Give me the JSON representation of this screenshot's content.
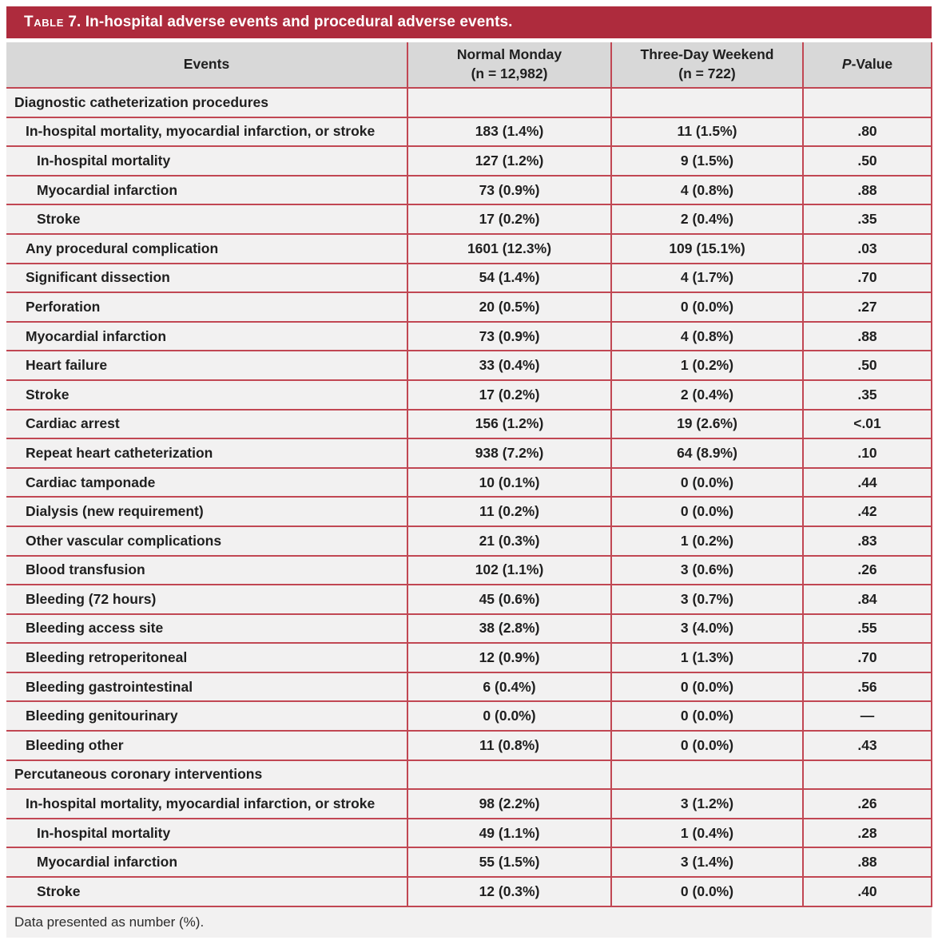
{
  "title": {
    "smallcaps": "Table",
    "rest": " 7. In-hospital adverse events and procedural adverse events."
  },
  "colors": {
    "title_bar_red": "#AE2B3D",
    "grid_line_red": "#C14753",
    "header_bg": "#D8D8D8",
    "row_bg": "#F2F1F1",
    "text": "#1F1F1F"
  },
  "columns": {
    "events": "Events",
    "monday_line1": "Normal Monday",
    "monday_line2": "(n = 12,982)",
    "weekend_line1": "Three-Day Weekend",
    "weekend_line2": "(n = 722)",
    "pvalue_italic": "P",
    "pvalue_rest": "-Value"
  },
  "table": {
    "rows": [
      {
        "label": "Diagnostic catheterization procedures",
        "indent": 0,
        "section": true,
        "monday": "",
        "weekend": "",
        "p": ""
      },
      {
        "label": "In-hospital mortality, myocardial infarction, or stroke",
        "indent": 1,
        "section": false,
        "monday": "183 (1.4%)",
        "weekend": "11 (1.5%)",
        "p": ".80"
      },
      {
        "label": "In-hospital mortality",
        "indent": 2,
        "section": false,
        "monday": "127 (1.2%)",
        "weekend": "9 (1.5%)",
        "p": ".50"
      },
      {
        "label": "Myocardial infarction",
        "indent": 2,
        "section": false,
        "monday": "73 (0.9%)",
        "weekend": "4 (0.8%)",
        "p": ".88"
      },
      {
        "label": "Stroke",
        "indent": 2,
        "section": false,
        "monday": "17 (0.2%)",
        "weekend": "2 (0.4%)",
        "p": ".35"
      },
      {
        "label": "Any procedural complication",
        "indent": 1,
        "section": false,
        "monday": "1601 (12.3%)",
        "weekend": "109 (15.1%)",
        "p": ".03"
      },
      {
        "label": "Significant dissection",
        "indent": 1,
        "section": false,
        "monday": "54 (1.4%)",
        "weekend": "4 (1.7%)",
        "p": ".70"
      },
      {
        "label": "Perforation",
        "indent": 1,
        "section": false,
        "monday": "20 (0.5%)",
        "weekend": "0 (0.0%)",
        "p": ".27"
      },
      {
        "label": "Myocardial infarction",
        "indent": 1,
        "section": false,
        "monday": "73 (0.9%)",
        "weekend": "4 (0.8%)",
        "p": ".88"
      },
      {
        "label": "Heart failure",
        "indent": 1,
        "section": false,
        "monday": "33 (0.4%)",
        "weekend": "1 (0.2%)",
        "p": ".50"
      },
      {
        "label": "Stroke",
        "indent": 1,
        "section": false,
        "monday": "17 (0.2%)",
        "weekend": "2 (0.4%)",
        "p": ".35"
      },
      {
        "label": "Cardiac arrest",
        "indent": 1,
        "section": false,
        "monday": "156 (1.2%)",
        "weekend": "19 (2.6%)",
        "p": "<.01"
      },
      {
        "label": "Repeat heart catheterization",
        "indent": 1,
        "section": false,
        "monday": "938 (7.2%)",
        "weekend": "64 (8.9%)",
        "p": ".10"
      },
      {
        "label": "Cardiac tamponade",
        "indent": 1,
        "section": false,
        "monday": "10 (0.1%)",
        "weekend": "0 (0.0%)",
        "p": ".44"
      },
      {
        "label": "Dialysis (new requirement)",
        "indent": 1,
        "section": false,
        "monday": "11 (0.2%)",
        "weekend": "0 (0.0%)",
        "p": ".42"
      },
      {
        "label": "Other vascular complications",
        "indent": 1,
        "section": false,
        "monday": "21 (0.3%)",
        "weekend": "1 (0.2%)",
        "p": ".83"
      },
      {
        "label": "Blood transfusion",
        "indent": 1,
        "section": false,
        "monday": "102 (1.1%)",
        "weekend": "3 (0.6%)",
        "p": ".26"
      },
      {
        "label": "Bleeding (72 hours)",
        "indent": 1,
        "section": false,
        "monday": "45 (0.6%)",
        "weekend": "3 (0.7%)",
        "p": ".84"
      },
      {
        "label": "Bleeding access site",
        "indent": 1,
        "section": false,
        "monday": "38 (2.8%)",
        "weekend": "3 (4.0%)",
        "p": ".55"
      },
      {
        "label": "Bleeding retroperitoneal",
        "indent": 1,
        "section": false,
        "monday": "12 (0.9%)",
        "weekend": "1 (1.3%)",
        "p": ".70"
      },
      {
        "label": "Bleeding gastrointestinal",
        "indent": 1,
        "section": false,
        "monday": "6 (0.4%)",
        "weekend": "0 (0.0%)",
        "p": ".56"
      },
      {
        "label": "Bleeding genitourinary",
        "indent": 1,
        "section": false,
        "monday": "0 (0.0%)",
        "weekend": "0 (0.0%)",
        "p": "—"
      },
      {
        "label": "Bleeding other",
        "indent": 1,
        "section": false,
        "monday": "11 (0.8%)",
        "weekend": "0 (0.0%)",
        "p": ".43"
      },
      {
        "label": "Percutaneous coronary interventions",
        "indent": 0,
        "section": true,
        "monday": "",
        "weekend": "",
        "p": ""
      },
      {
        "label": "In-hospital mortality, myocardial infarction, or stroke",
        "indent": 1,
        "section": false,
        "monday": "98 (2.2%)",
        "weekend": "3 (1.2%)",
        "p": ".26"
      },
      {
        "label": "In-hospital mortality",
        "indent": 2,
        "section": false,
        "monday": "49 (1.1%)",
        "weekend": "1 (0.4%)",
        "p": ".28"
      },
      {
        "label": "Myocardial infarction",
        "indent": 2,
        "section": false,
        "monday": "55 (1.5%)",
        "weekend": "3 (1.4%)",
        "p": ".88"
      },
      {
        "label": "Stroke",
        "indent": 2,
        "section": false,
        "monday": "12 (0.3%)",
        "weekend": "0 (0.0%)",
        "p": ".40"
      }
    ]
  },
  "footnote": "Data presented as number (%)."
}
